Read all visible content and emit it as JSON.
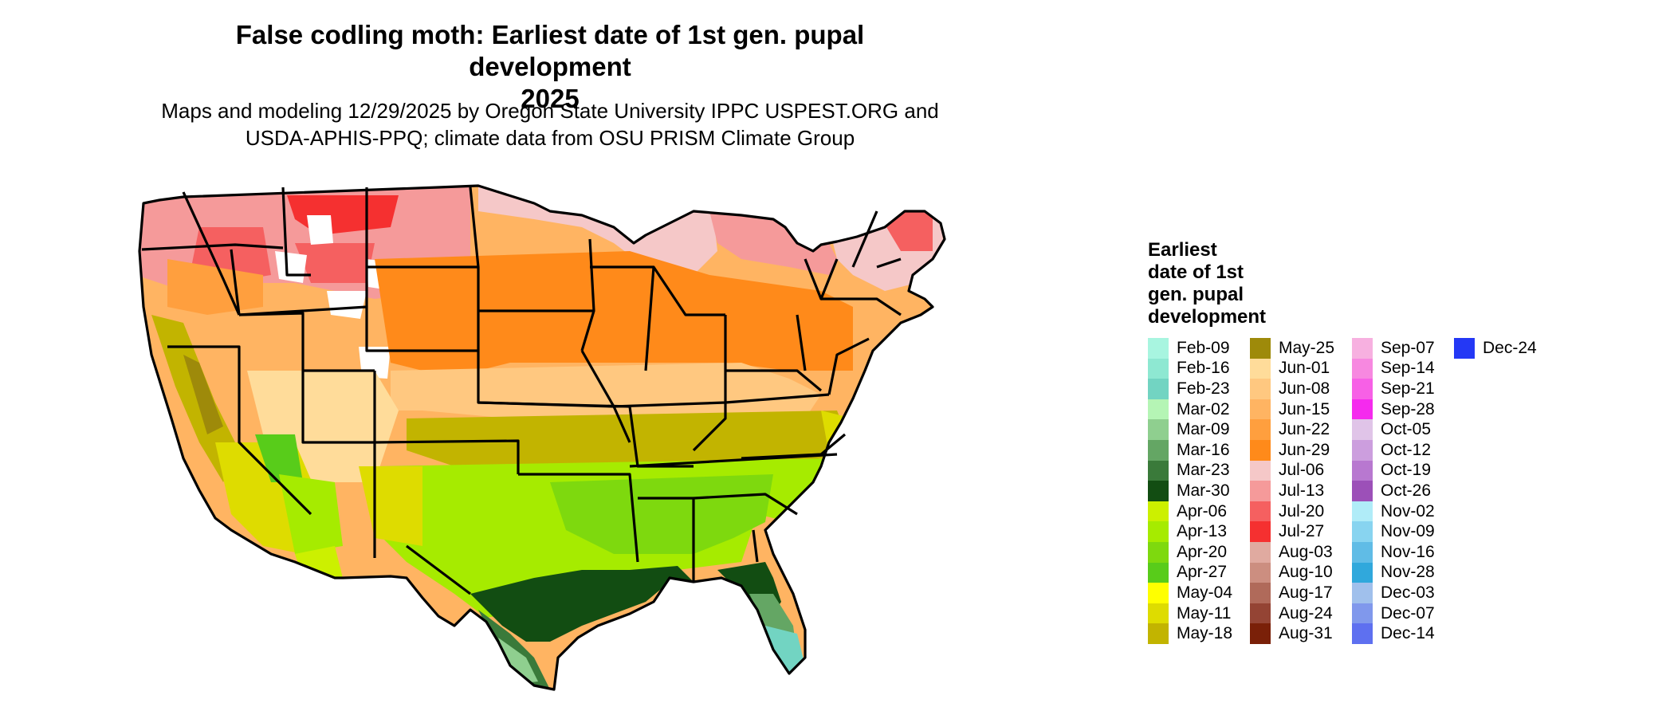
{
  "title_line1": "False codling moth: Earliest date of 1st gen. pupal development",
  "title_line2": "2025",
  "subtitle_line1": "Maps and modeling 12/29/2025 by Oregon State University IPPC USPEST.ORG and",
  "subtitle_line2": "USDA-APHIS-PPQ; climate data from OSU PRISM Climate Group",
  "legend": {
    "title_lines": [
      "Earliest",
      "date of 1st",
      "gen. pupal",
      "development"
    ],
    "items": [
      {
        "label": "Feb-09",
        "color": "#a8f5e0"
      },
      {
        "label": "Feb-16",
        "color": "#8ee8d2"
      },
      {
        "label": "Feb-23",
        "color": "#72d4c2"
      },
      {
        "label": "Mar-02",
        "color": "#b5f5b5"
      },
      {
        "label": "Mar-09",
        "color": "#8fcf8f"
      },
      {
        "label": "Mar-16",
        "color": "#64a664"
      },
      {
        "label": "Mar-23",
        "color": "#3a7a3a"
      },
      {
        "label": "Mar-30",
        "color": "#124d12"
      },
      {
        "label": "Apr-06",
        "color": "#ccf000"
      },
      {
        "label": "Apr-13",
        "color": "#a6eb00"
      },
      {
        "label": "Apr-20",
        "color": "#7ed90e"
      },
      {
        "label": "Apr-27",
        "color": "#58cc1a"
      },
      {
        "label": "May-04",
        "color": "#ffff00"
      },
      {
        "label": "May-11",
        "color": "#dedc00"
      },
      {
        "label": "May-18",
        "color": "#c2b400"
      },
      {
        "label": "May-25",
        "color": "#9e8a0a"
      },
      {
        "label": "Jun-01",
        "color": "#ffdc9a"
      },
      {
        "label": "Jun-08",
        "color": "#ffc880"
      },
      {
        "label": "Jun-15",
        "color": "#ffb462"
      },
      {
        "label": "Jun-22",
        "color": "#ff9f3e"
      },
      {
        "label": "Jun-29",
        "color": "#ff8a1a"
      },
      {
        "label": "Jul-06",
        "color": "#f5c8c8"
      },
      {
        "label": "Jul-13",
        "color": "#f59a9a"
      },
      {
        "label": "Jul-20",
        "color": "#f56060"
      },
      {
        "label": "Jul-27",
        "color": "#f53030"
      },
      {
        "label": "Aug-03",
        "color": "#e0aaa0"
      },
      {
        "label": "Aug-10",
        "color": "#cc8e80"
      },
      {
        "label": "Aug-17",
        "color": "#b06a5a"
      },
      {
        "label": "Aug-24",
        "color": "#944434"
      },
      {
        "label": "Aug-31",
        "color": "#7a2008"
      },
      {
        "label": "Sep-07",
        "color": "#f7b0e0"
      },
      {
        "label": "Sep-14",
        "color": "#f788e0"
      },
      {
        "label": "Sep-21",
        "color": "#f760e6"
      },
      {
        "label": "Sep-28",
        "color": "#f52aee"
      },
      {
        "label": "Oct-05",
        "color": "#e0c4e8"
      },
      {
        "label": "Oct-12",
        "color": "#cc9ede"
      },
      {
        "label": "Oct-19",
        "color": "#b878d0"
      },
      {
        "label": "Oct-26",
        "color": "#9c50b8"
      },
      {
        "label": "Nov-02",
        "color": "#b0ecf8"
      },
      {
        "label": "Nov-09",
        "color": "#88d4f0"
      },
      {
        "label": "Nov-16",
        "color": "#60bce6"
      },
      {
        "label": "Nov-28",
        "color": "#30a8dc"
      },
      {
        "label": "Dec-03",
        "color": "#a0c0ec"
      },
      {
        "label": "Dec-07",
        "color": "#8098ec"
      },
      {
        "label": "Dec-14",
        "color": "#5e70f0"
      },
      {
        "label": "Dec-24",
        "color": "#2438f5"
      }
    ]
  }
}
